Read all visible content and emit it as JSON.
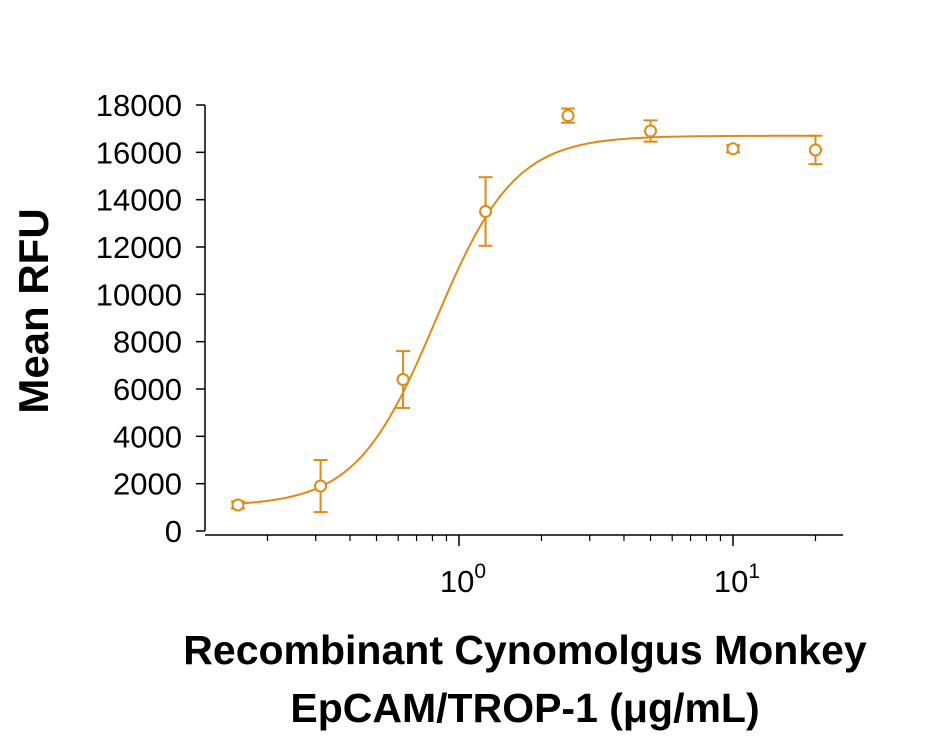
{
  "chart_data": {
    "type": "scatter",
    "ylabel": "Mean RFU",
    "xlabel_line1": "Recombinant Cynomolgus Monkey",
    "xlabel_line2": "EpCAM/TROP-1 (μg/mL)",
    "x_scale": "log",
    "xlim": [
      0.11,
      28
    ],
    "ylim": [
      0,
      18000
    ],
    "y_ticks": [
      0,
      2000,
      4000,
      6000,
      8000,
      10000,
      12000,
      14000,
      16000,
      18000
    ],
    "x_major_ticks": [
      {
        "value": 1,
        "base": "10",
        "exp": "0"
      },
      {
        "value": 10,
        "base": "10",
        "exp": "1"
      }
    ],
    "color": "#E08A14",
    "grid": false,
    "series": [
      {
        "x": [
          0.156,
          0.3125,
          0.625,
          1.25,
          2.5,
          5,
          10,
          20
        ],
        "y": [
          1100,
          1900,
          6400,
          13500,
          17550,
          16900,
          16150,
          16100
        ],
        "err": [
          150,
          1100,
          1200,
          1450,
          300,
          450,
          150,
          600
        ]
      }
    ],
    "fit_curve": {
      "model": "4PL",
      "bottom": 1050,
      "top": 16700,
      "ec50": 0.82,
      "hill": 3.0
    }
  }
}
